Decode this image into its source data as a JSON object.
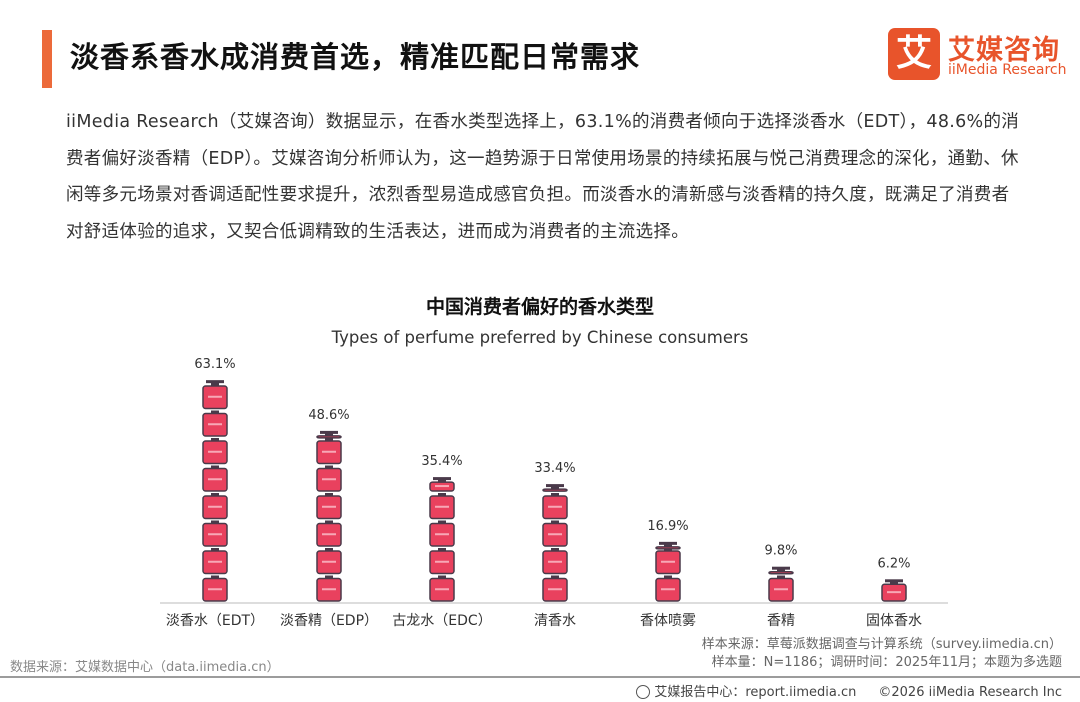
{
  "header": {
    "title": "淡香系香水成消费首选，精准匹配日常需求",
    "logo_mark": "艾",
    "logo_cn": "艾媒咨询",
    "logo_en": "iiMedia Research"
  },
  "paragraph": "iiMedia Research（艾媒咨询）数据显示，在香水类型选择上，63.1%的消费者倾向于选择淡香水（EDT），48.6%的消费者偏好淡香精（EDP）。艾媒咨询分析师认为，这一趋势源于日常使用场景的持续拓展与悦己消费理念的深化，通勤、休闲等多元场景对香调适配性要求提升，浓烈香型易造成感官负担。而淡香水的清新感与淡香精的持久度，既满足了消费者对舒适体验的追求，又契合低调精致的生活表达，进而成为消费者的主流选择。",
  "chart_data": {
    "type": "bar",
    "title": "中国消费者偏好的香水类型",
    "subtitle": "Types of perfume preferred by Chinese consumers",
    "categories": [
      "淡香水（EDT）",
      "淡香精（EDP）",
      "古龙水（EDC）",
      "清香水",
      "香体喷雾",
      "香精",
      "固体香水"
    ],
    "values": [
      63.1,
      48.6,
      35.4,
      33.4,
      16.9,
      9.8,
      6.2
    ],
    "value_labels": [
      "63.1%",
      "48.6%",
      "35.4%",
      "33.4%",
      "16.9%",
      "9.8%",
      "6.2%"
    ],
    "unit": "%",
    "ylim": [
      0,
      70
    ],
    "grid": false,
    "bar_color": "#e9415e",
    "cap_color": "#4a3a4a"
  },
  "footer": {
    "sample_source": "样本来源：草莓派数据调查与计算系统（survey.iimedia.cn）",
    "sample_info": "样本量：N=1186；调研时间：2025年11月；本题为多选题",
    "data_source": "数据来源：艾媒数据中心（data.iimedia.cn）",
    "report_center": "艾媒报告中心：report.iimedia.cn",
    "copyright": "©2026 iiMedia Research Inc"
  }
}
